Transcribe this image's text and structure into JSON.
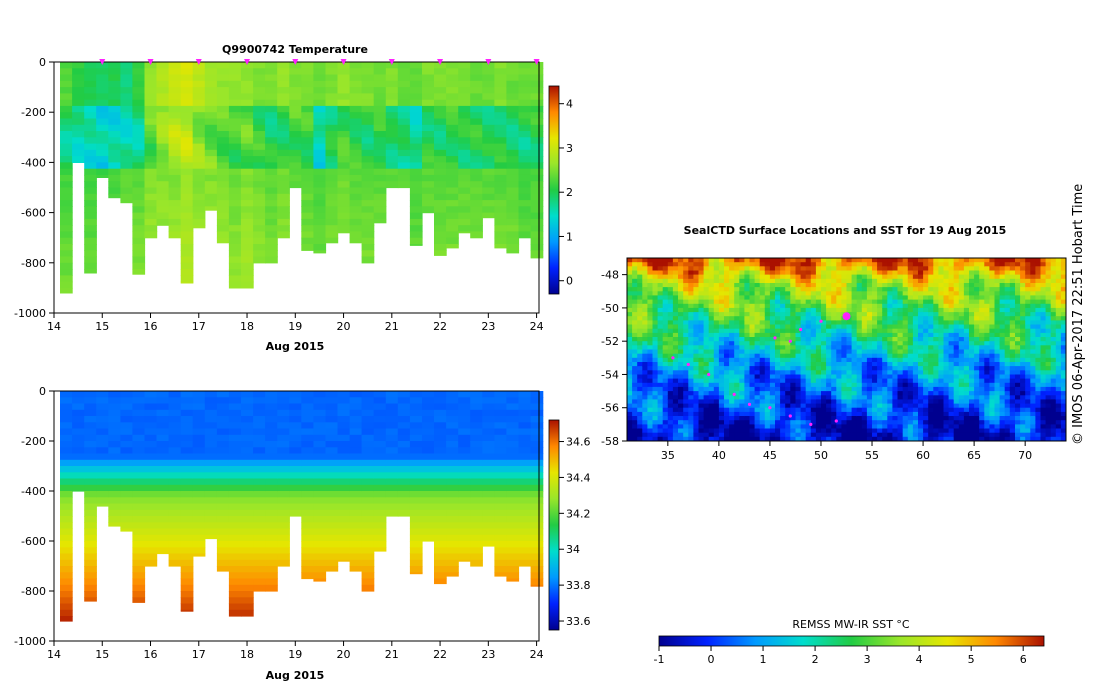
{
  "chart_data": [
    {
      "type": "heatmap",
      "title": "Q9900742  Temperature",
      "xlabel": "Aug 2015",
      "ylabel": "",
      "x_ticks": [
        "14",
        "15",
        "16",
        "17",
        "18",
        "19",
        "20",
        "21",
        "22",
        "23",
        "24"
      ],
      "y_ticks": [
        "0",
        "-200",
        "-400",
        "-600",
        "-800",
        "-1000"
      ],
      "xlim": [
        14,
        24.05
      ],
      "ylim": [
        -1000,
        0
      ],
      "colorbar": {
        "min": -0.3,
        "max": 4.4,
        "ticks": [
          "0",
          "1",
          "2",
          "3",
          "4"
        ]
      },
      "profile_days": [
        14.25,
        14.5,
        14.75,
        15.0,
        15.25,
        15.5,
        15.75,
        16.0,
        16.25,
        16.5,
        16.75,
        17.0,
        17.25,
        17.5,
        17.75,
        18.0,
        18.25,
        18.5,
        18.75,
        19.0,
        19.25,
        19.5,
        19.75,
        20.0,
        20.25,
        20.5,
        20.75,
        21.0,
        21.25,
        21.5,
        21.75,
        22.0,
        22.25,
        22.5,
        22.75,
        23.0,
        23.25,
        23.5,
        23.75,
        24.0
      ],
      "profile_max_depth": [
        -920,
        -400,
        -840,
        -460,
        -540,
        -560,
        -845,
        -700,
        -650,
        -700,
        -880,
        -660,
        -590,
        -720,
        -900,
        -900,
        -800,
        -800,
        -700,
        -500,
        -750,
        -760,
        -720,
        -680,
        -720,
        -800,
        -640,
        -500,
        -500,
        -730,
        -600,
        -770,
        -740,
        -680,
        -700,
        -620,
        -740,
        -760,
        -700,
        -780
      ],
      "profile_values": [
        {
          "upper": 2.3,
          "thermocline": 1.8,
          "deep": 2.2
        },
        {
          "upper": 2.1,
          "thermocline": 1.6,
          "deep": 2.1
        },
        {
          "upper": 2.0,
          "thermocline": 1.5,
          "deep": 2.2
        },
        {
          "upper": 1.9,
          "thermocline": 1.4,
          "deep": 2.1
        },
        {
          "upper": 2.0,
          "thermocline": 1.5,
          "deep": 2.2
        },
        {
          "upper": 1.8,
          "thermocline": 1.6,
          "deep": 2.3
        },
        {
          "upper": 2.1,
          "thermocline": 1.7,
          "deep": 2.3
        },
        {
          "upper": 2.6,
          "thermocline": 2.3,
          "deep": 2.5
        },
        {
          "upper": 2.8,
          "thermocline": 2.6,
          "deep": 2.5
        },
        {
          "upper": 3.0,
          "thermocline": 2.8,
          "deep": 2.5
        },
        {
          "upper": 3.1,
          "thermocline": 2.9,
          "deep": 2.6
        },
        {
          "upper": 2.9,
          "thermocline": 2.6,
          "deep": 2.5
        },
        {
          "upper": 2.7,
          "thermocline": 2.4,
          "deep": 2.5
        },
        {
          "upper": 2.6,
          "thermocline": 2.3,
          "deep": 2.5
        },
        {
          "upper": 2.6,
          "thermocline": 2.2,
          "deep": 2.4
        },
        {
          "upper": 2.6,
          "thermocline": 2.3,
          "deep": 2.5
        },
        {
          "upper": 2.5,
          "thermocline": 2.1,
          "deep": 2.4
        },
        {
          "upper": 2.5,
          "thermocline": 1.9,
          "deep": 2.3
        },
        {
          "upper": 2.6,
          "thermocline": 2.0,
          "deep": 2.4
        },
        {
          "upper": 2.5,
          "thermocline": 2.2,
          "deep": 2.3
        },
        {
          "upper": 2.5,
          "thermocline": 2.1,
          "deep": 2.3
        },
        {
          "upper": 2.4,
          "thermocline": 1.5,
          "deep": 2.2
        },
        {
          "upper": 2.5,
          "thermocline": 1.9,
          "deep": 2.3
        },
        {
          "upper": 2.6,
          "thermocline": 2.2,
          "deep": 2.4
        },
        {
          "upper": 2.5,
          "thermocline": 2.1,
          "deep": 2.3
        },
        {
          "upper": 2.5,
          "thermocline": 2.0,
          "deep": 2.3
        },
        {
          "upper": 2.4,
          "thermocline": 2.1,
          "deep": 2.3
        },
        {
          "upper": 2.5,
          "thermocline": 1.9,
          "deep": 2.3
        },
        {
          "upper": 2.4,
          "thermocline": 1.8,
          "deep": 2.3
        },
        {
          "upper": 2.4,
          "thermocline": 1.6,
          "deep": 2.2
        },
        {
          "upper": 2.5,
          "thermocline": 2.0,
          "deep": 2.3
        },
        {
          "upper": 2.5,
          "thermocline": 2.0,
          "deep": 2.3
        },
        {
          "upper": 2.5,
          "thermocline": 2.1,
          "deep": 2.3
        },
        {
          "upper": 2.5,
          "thermocline": 2.0,
          "deep": 2.3
        },
        {
          "upper": 2.4,
          "thermocline": 2.0,
          "deep": 2.3
        },
        {
          "upper": 2.4,
          "thermocline": 1.9,
          "deep": 2.3
        },
        {
          "upper": 2.5,
          "thermocline": 2.0,
          "deep": 2.3
        },
        {
          "upper": 2.4,
          "thermocline": 1.9,
          "deep": 2.3
        },
        {
          "upper": 2.4,
          "thermocline": 1.9,
          "deep": 2.2
        },
        {
          "upper": 2.4,
          "thermocline": 2.0,
          "deep": 2.2
        }
      ]
    },
    {
      "type": "heatmap",
      "title": "",
      "xlabel": "Aug 2015",
      "ylabel": "",
      "x_ticks": [
        "14",
        "15",
        "16",
        "17",
        "18",
        "19",
        "20",
        "21",
        "22",
        "23",
        "24"
      ],
      "y_ticks": [
        "0",
        "-200",
        "-400",
        "-600",
        "-800",
        "-1000"
      ],
      "xlim": [
        14,
        24.05
      ],
      "ylim": [
        -1000,
        0
      ],
      "colorbar": {
        "min": 33.55,
        "max": 34.72,
        "ticks": [
          "33.6",
          "33.8",
          "34",
          "34.2",
          "34.4",
          "34.6"
        ]
      },
      "salinity_profile": {
        "surface": 33.78,
        "halocline_top_depth": -260,
        "halocline_bottom_depth": -420,
        "mid": 34.25,
        "deep": 34.72
      }
    },
    {
      "type": "heatmap",
      "title": "SealCTD Surface Locations and SST for 19 Aug 2015",
      "xlabel": "",
      "ylabel": "",
      "x_ticks": [
        "35",
        "40",
        "45",
        "50",
        "55",
        "60",
        "65",
        "70"
      ],
      "y_ticks": [
        "-48",
        "-50",
        "-52",
        "-54",
        "-56",
        "-58"
      ],
      "xlim": [
        31,
        74
      ],
      "ylim": [
        -58,
        -47
      ],
      "colorbar": {
        "label": "REMSS MW-IR SST °C",
        "min": -1,
        "max": 6.4,
        "ticks": [
          "-1",
          "0",
          "1",
          "2",
          "3",
          "4",
          "5",
          "6"
        ]
      },
      "sst_by_latitude": [
        {
          "lat": -47.2,
          "sst": 5.8
        },
        {
          "lat": -48.5,
          "sst": 4.0
        },
        {
          "lat": -49.5,
          "sst": 3.4
        },
        {
          "lat": -51.0,
          "sst": 2.5
        },
        {
          "lat": -52.5,
          "sst": 1.7
        },
        {
          "lat": -54.0,
          "sst": 0.9
        },
        {
          "lat": -55.5,
          "sst": 0.3
        },
        {
          "lat": -57.5,
          "sst": -0.6
        }
      ],
      "seal_track": [
        {
          "lon": 35.5,
          "lat": -53.0
        },
        {
          "lon": 37.0,
          "lat": -53.4
        },
        {
          "lon": 39.0,
          "lat": -54.0
        },
        {
          "lon": 41.5,
          "lat": -55.2
        },
        {
          "lon": 43.0,
          "lat": -55.8
        },
        {
          "lon": 45.0,
          "lat": -56.0
        },
        {
          "lon": 47.0,
          "lat": -56.5
        },
        {
          "lon": 49.0,
          "lat": -57.0
        },
        {
          "lon": 51.5,
          "lat": -56.8
        },
        {
          "lon": 45.5,
          "lat": -51.8
        },
        {
          "lon": 47.0,
          "lat": -52.0
        },
        {
          "lon": 48.0,
          "lat": -51.3
        },
        {
          "lon": 50.0,
          "lat": -50.8
        },
        {
          "lon": 52.5,
          "lat": -50.5
        }
      ],
      "current_location": {
        "lon": 52.5,
        "lat": -50.5
      }
    }
  ],
  "copyright": "© IMOS 06-Apr-2017 22:51 Hobart Time",
  "colors": {
    "track": "#ff22ff",
    "marker": "#ff22ff"
  }
}
